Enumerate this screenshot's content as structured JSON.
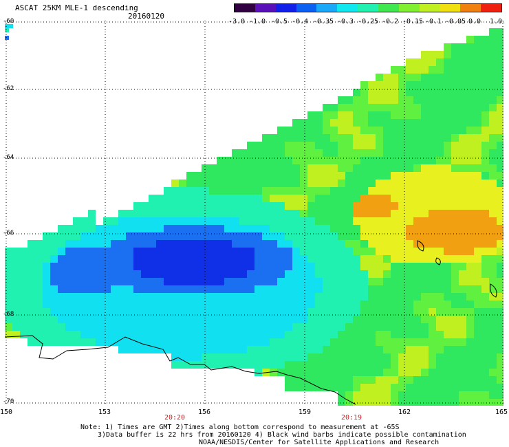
{
  "header": {
    "title": "ASCAT 25KM MLE-1 descending",
    "date": "20160120"
  },
  "colorbar": {
    "tick_labels": [
      "-3.0",
      "-1.0",
      "-0.5",
      "-0.4",
      "-0.35",
      "-0.3",
      "-0.25",
      "-0.2",
      "-0.15",
      "-0.1",
      "-0.05",
      "0.0",
      "1.0"
    ],
    "colors": [
      "#300040",
      "#5a10b8",
      "#1020e8",
      "#0a60f0",
      "#1aa8f8",
      "#10e8f0",
      "#20f0b0",
      "#40e850",
      "#80f030",
      "#c0f020",
      "#f0e010",
      "#f08010",
      "#f02010"
    ]
  },
  "axes": {
    "lat_labels": [
      "-60",
      "-62",
      "-64",
      "-66",
      "-68",
      "-70"
    ],
    "lon_labels": [
      "150",
      "153",
      "156",
      "159",
      "162",
      "165"
    ],
    "time_labels": [
      "20:20",
      "20:19"
    ]
  },
  "notes": {
    "line1": "Note: 1) Times are GMT 2)Times along bottom correspond to measurement at -65S",
    "line2": "3)Data buffer is 22 hrs from 20160120 4) Black wind barbs indicate possible contamination",
    "line3": "NOAA/NESDIS/Center for Satellite Applications and Research"
  },
  "map": {
    "field": "ASCAT 25KM MLE-1",
    "lat_range": [
      -70,
      -60
    ],
    "lon_range": [
      150,
      165
    ]
  }
}
